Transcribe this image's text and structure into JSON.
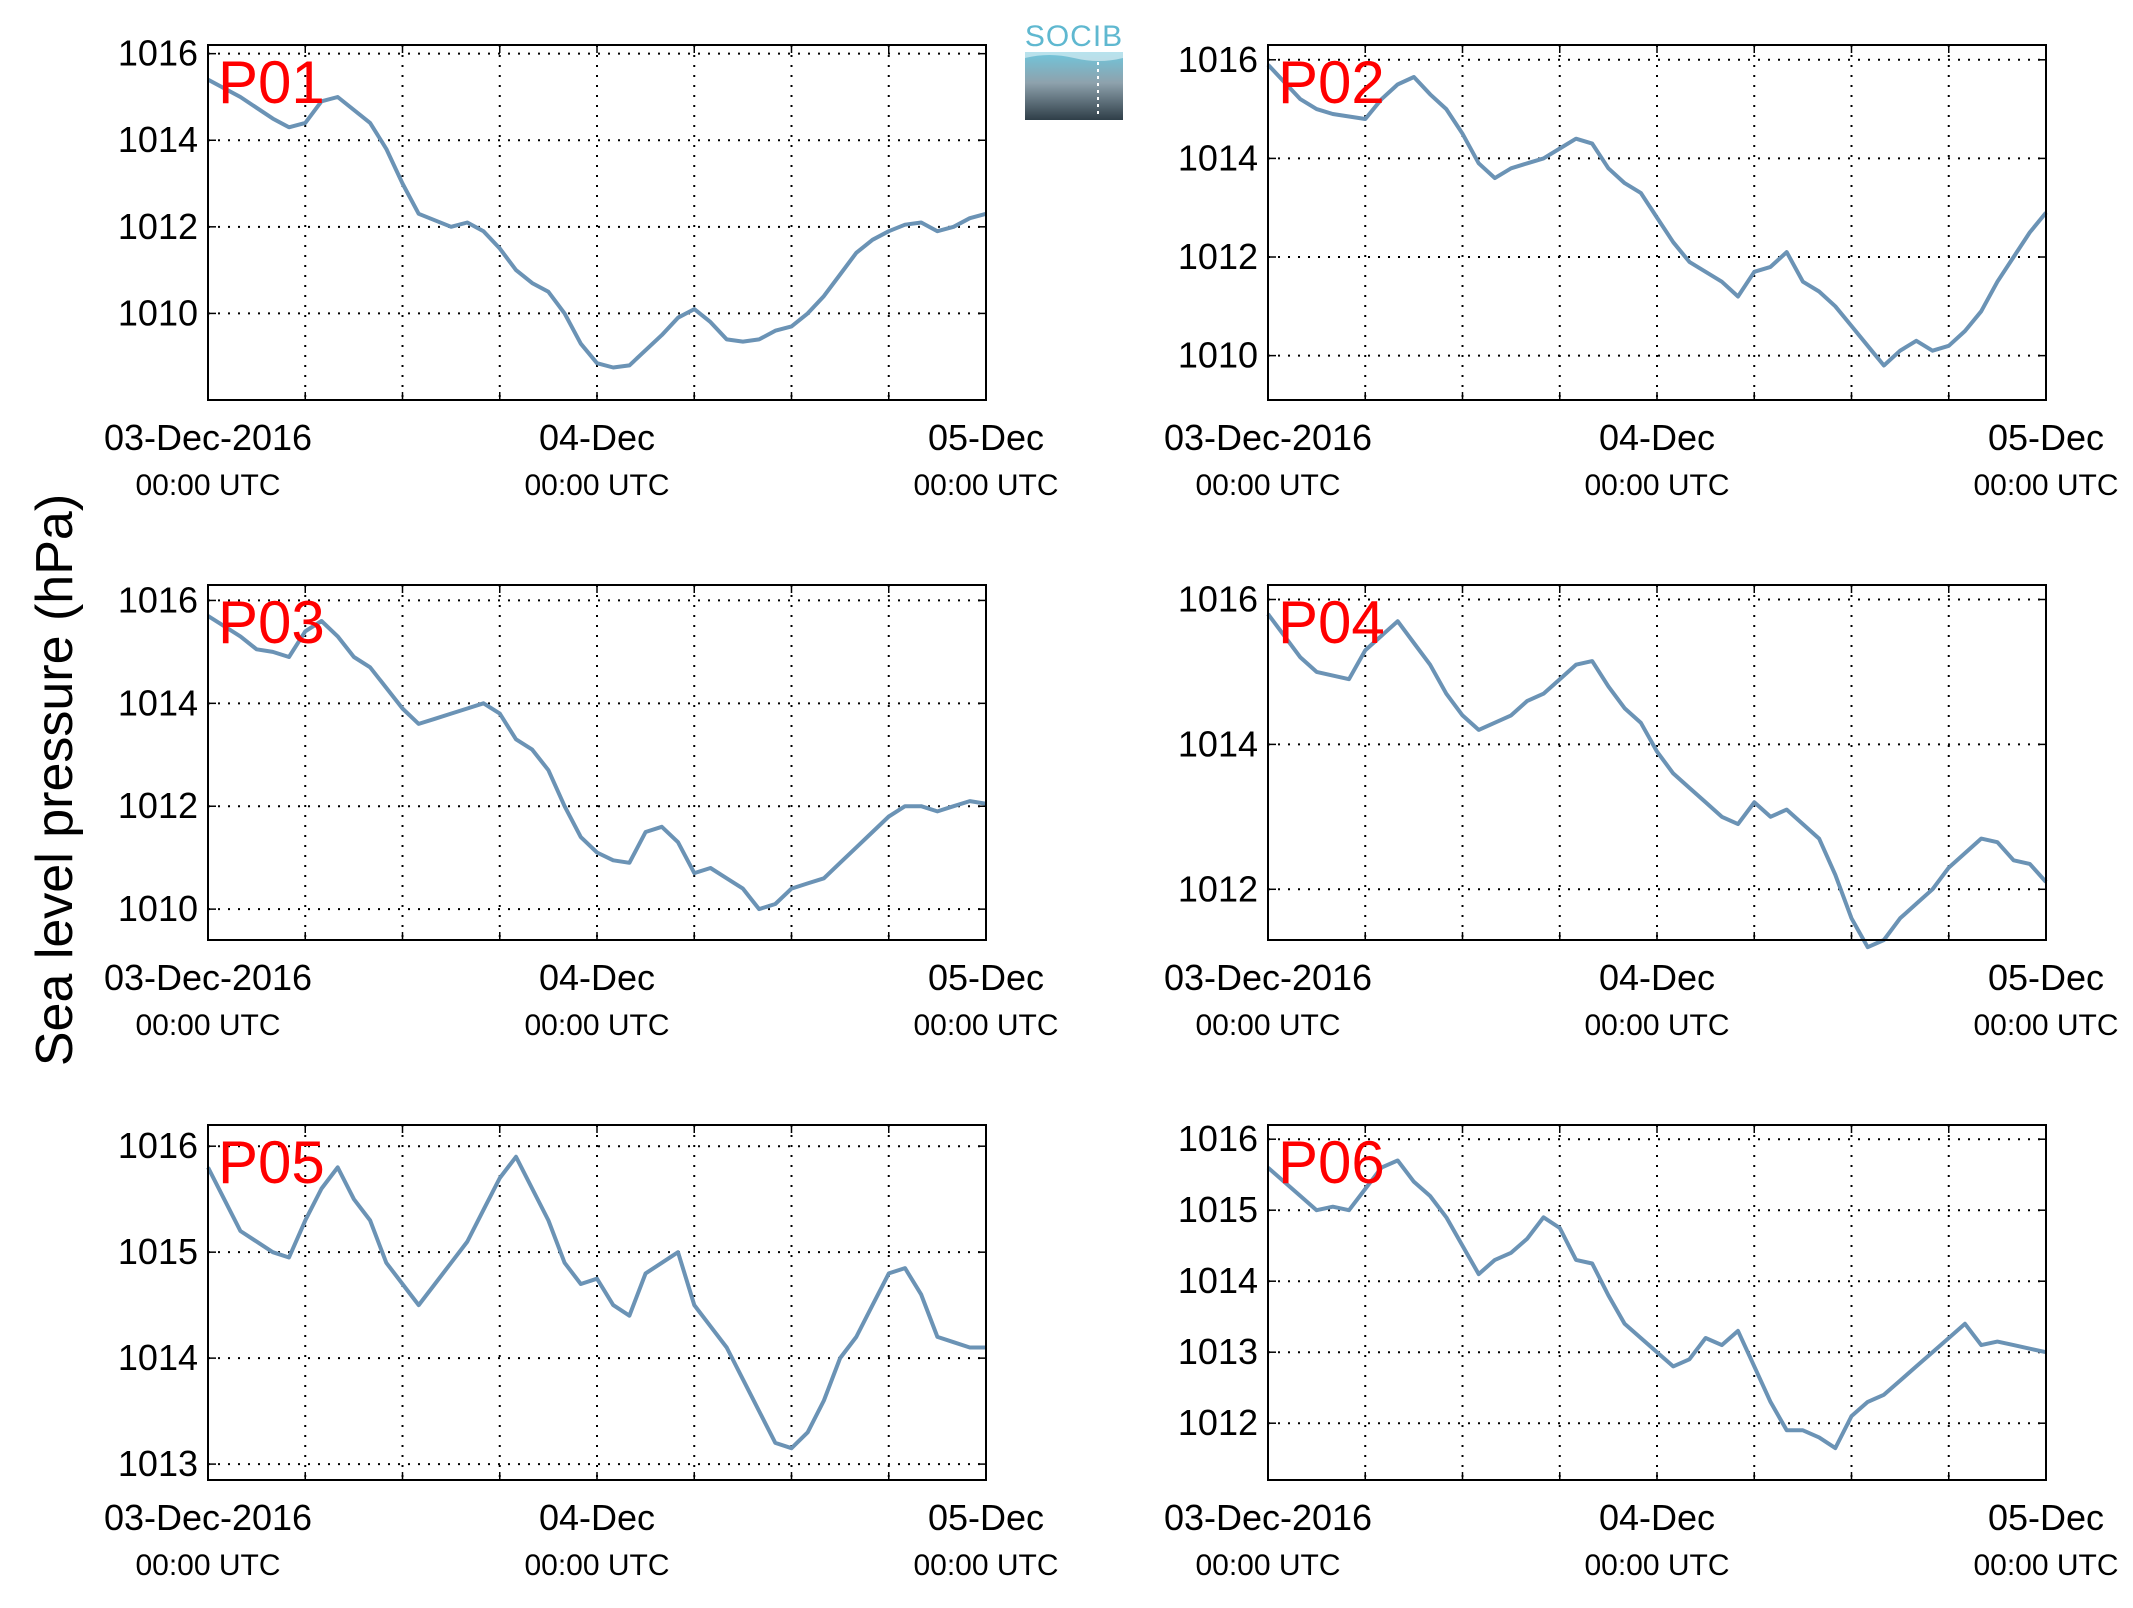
{
  "figure": {
    "ylabel": "Sea level pressure (hPa)",
    "logo_text": "SOCIB",
    "x_tick_labels": [
      "03-Dec-2016",
      "04-Dec",
      "05-Dec"
    ],
    "x_tick_sublabels": [
      "00:00 UTC",
      "00:00 UTC",
      "00:00 UTC"
    ],
    "line_color": "#6b93b5",
    "label_color": "#ff0000"
  },
  "chart_data": [
    {
      "type": "line",
      "name": "P01",
      "xlim": [
        0,
        48
      ],
      "ylim": [
        1008,
        1016.2
      ],
      "yticks": [
        1010,
        1012,
        1014,
        1016
      ],
      "grid": true,
      "x": [
        0,
        2,
        4,
        5,
        6,
        7,
        8,
        10,
        11,
        12,
        13,
        15,
        16,
        17,
        18,
        19,
        20,
        21,
        22,
        23,
        24,
        25,
        26,
        28,
        29,
        30,
        31,
        32,
        33,
        34,
        35,
        36,
        37,
        38,
        39,
        40,
        41,
        42,
        43,
        44,
        45,
        46,
        47,
        48
      ],
      "y": [
        1015.4,
        1015.0,
        1014.5,
        1014.3,
        1014.4,
        1014.9,
        1015.0,
        1014.4,
        1013.8,
        1013.0,
        1012.3,
        1012.0,
        1012.1,
        1011.9,
        1011.5,
        1011.0,
        1010.7,
        1010.5,
        1010.0,
        1009.3,
        1008.85,
        1008.75,
        1008.8,
        1009.5,
        1009.9,
        1010.1,
        1009.8,
        1009.4,
        1009.35,
        1009.4,
        1009.6,
        1009.7,
        1010.0,
        1010.4,
        1010.9,
        1011.4,
        1011.7,
        1011.9,
        1012.05,
        1012.1,
        1011.9,
        1012.0,
        1012.2,
        1012.3
      ]
    },
    {
      "type": "line",
      "name": "P02",
      "xlim": [
        0,
        48
      ],
      "ylim": [
        1009.1,
        1016.3
      ],
      "yticks": [
        1010,
        1012,
        1014,
        1016
      ],
      "grid": true,
      "x": [
        0,
        2,
        3,
        4,
        5,
        6,
        7,
        8,
        9,
        10,
        11,
        12,
        13,
        14,
        15,
        16,
        17,
        18,
        19,
        20,
        21,
        22,
        23,
        24,
        25,
        26,
        27,
        28,
        29,
        30,
        31,
        32,
        33,
        34,
        35,
        36,
        37,
        38,
        39,
        40,
        41,
        42,
        43,
        44,
        45,
        46,
        47,
        48
      ],
      "y": [
        1015.9,
        1015.2,
        1015.0,
        1014.9,
        1014.85,
        1014.8,
        1015.2,
        1015.5,
        1015.65,
        1015.3,
        1015.0,
        1014.5,
        1013.9,
        1013.6,
        1013.8,
        1013.9,
        1014.0,
        1014.2,
        1014.4,
        1014.3,
        1013.8,
        1013.5,
        1013.3,
        1012.8,
        1012.3,
        1011.9,
        1011.7,
        1011.5,
        1011.2,
        1011.7,
        1011.8,
        1012.1,
        1011.5,
        1011.3,
        1011.0,
        1010.6,
        1010.2,
        1009.8,
        1010.1,
        1010.3,
        1010.1,
        1010.2,
        1010.5,
        1010.9,
        1011.5,
        1012.0,
        1012.5,
        1012.9
      ]
    },
    {
      "type": "line",
      "name": "P03",
      "xlim": [
        0,
        48
      ],
      "ylim": [
        1009.4,
        1016.3
      ],
      "yticks": [
        1010,
        1012,
        1014,
        1016
      ],
      "grid": true,
      "x": [
        0,
        2,
        3,
        4,
        5,
        6,
        7,
        8,
        9,
        10,
        11,
        12,
        13,
        14,
        15,
        16,
        17,
        18,
        19,
        20,
        21,
        22,
        23,
        24,
        25,
        26,
        27,
        28,
        29,
        30,
        31,
        32,
        33,
        34,
        35,
        36,
        37,
        38,
        39,
        40,
        41,
        42,
        43,
        44,
        45,
        46,
        47,
        48
      ],
      "y": [
        1015.7,
        1015.3,
        1015.05,
        1015.0,
        1014.9,
        1015.4,
        1015.6,
        1015.3,
        1014.9,
        1014.7,
        1014.3,
        1013.9,
        1013.6,
        1013.7,
        1013.8,
        1013.9,
        1014.0,
        1013.8,
        1013.3,
        1013.1,
        1012.7,
        1012.0,
        1011.4,
        1011.1,
        1010.95,
        1010.9,
        1011.5,
        1011.6,
        1011.3,
        1010.7,
        1010.8,
        1010.6,
        1010.4,
        1010.0,
        1010.1,
        1010.4,
        1010.5,
        1010.6,
        1010.9,
        1011.2,
        1011.5,
        1011.8,
        1012.0,
        1012.0,
        1011.9,
        1012.0,
        1012.1,
        1012.05
      ]
    },
    {
      "type": "line",
      "name": "P04",
      "xlim": [
        0,
        48
      ],
      "ylim": [
        1011.3,
        1016.2
      ],
      "yticks": [
        1012,
        1014,
        1016
      ],
      "grid": true,
      "x": [
        0,
        2,
        3,
        4,
        5,
        6,
        7,
        8,
        9,
        10,
        11,
        12,
        13,
        14,
        15,
        16,
        17,
        18,
        19,
        20,
        21,
        22,
        23,
        24,
        25,
        26,
        27,
        28,
        29,
        30,
        31,
        32,
        33,
        34,
        35,
        36,
        37,
        38,
        39,
        40,
        41,
        42,
        43,
        44,
        45,
        46,
        47,
        48
      ],
      "y": [
        1015.8,
        1015.2,
        1015.0,
        1014.95,
        1014.9,
        1015.3,
        1015.5,
        1015.7,
        1015.4,
        1015.1,
        1014.7,
        1014.4,
        1014.2,
        1014.3,
        1014.4,
        1014.6,
        1014.7,
        1014.9,
        1015.1,
        1015.15,
        1014.8,
        1014.5,
        1014.3,
        1013.9,
        1013.6,
        1013.4,
        1013.2,
        1013.0,
        1012.9,
        1013.2,
        1013.0,
        1013.1,
        1012.9,
        1012.7,
        1012.2,
        1011.6,
        1011.2,
        1011.3,
        1011.6,
        1011.8,
        1012.0,
        1012.3,
        1012.5,
        1012.7,
        1012.65,
        1012.4,
        1012.35,
        1012.1
      ]
    },
    {
      "type": "line",
      "name": "P05",
      "xlim": [
        0,
        48
      ],
      "ylim": [
        1012.85,
        1016.2
      ],
      "yticks": [
        1013,
        1014,
        1015,
        1016
      ],
      "grid": true,
      "x": [
        0,
        1,
        2,
        3,
        4,
        5,
        6,
        7,
        8,
        9,
        10,
        11,
        12,
        13,
        14,
        15,
        16,
        17,
        18,
        19,
        20,
        21,
        22,
        23,
        24,
        25,
        26,
        27,
        28,
        29,
        30,
        31,
        32,
        33,
        34,
        35,
        36,
        37,
        38,
        39,
        40,
        41,
        42,
        43,
        44,
        45,
        46,
        47,
        48
      ],
      "y": [
        1015.8,
        1015.5,
        1015.2,
        1015.1,
        1015.0,
        1014.95,
        1015.3,
        1015.6,
        1015.8,
        1015.5,
        1015.3,
        1014.9,
        1014.7,
        1014.5,
        1014.7,
        1014.9,
        1015.1,
        1015.4,
        1015.7,
        1015.9,
        1015.6,
        1015.3,
        1014.9,
        1014.7,
        1014.75,
        1014.5,
        1014.4,
        1014.8,
        1014.9,
        1015.0,
        1014.5,
        1014.3,
        1014.1,
        1013.8,
        1013.5,
        1013.2,
        1013.15,
        1013.3,
        1013.6,
        1014.0,
        1014.2,
        1014.5,
        1014.8,
        1014.85,
        1014.6,
        1014.2,
        1014.15,
        1014.1,
        1014.1
      ]
    },
    {
      "type": "line",
      "name": "P06",
      "xlim": [
        0,
        48
      ],
      "ylim": [
        1011.2,
        1016.2
      ],
      "yticks": [
        1012,
        1013,
        1014,
        1015,
        1016
      ],
      "grid": true,
      "x": [
        0,
        2,
        3,
        4,
        5,
        6,
        7,
        8,
        9,
        10,
        11,
        12,
        13,
        14,
        15,
        16,
        17,
        18,
        19,
        20,
        21,
        22,
        23,
        24,
        25,
        26,
        27,
        28,
        29,
        30,
        31,
        32,
        33,
        34,
        35,
        36,
        37,
        38,
        39,
        40,
        41,
        42,
        43,
        44,
        45,
        46,
        47,
        48
      ],
      "y": [
        1015.6,
        1015.2,
        1015.0,
        1015.05,
        1015.0,
        1015.3,
        1015.6,
        1015.7,
        1015.4,
        1015.2,
        1014.9,
        1014.5,
        1014.1,
        1014.3,
        1014.4,
        1014.6,
        1014.9,
        1014.75,
        1014.3,
        1014.25,
        1013.8,
        1013.4,
        1013.2,
        1013.0,
        1012.8,
        1012.9,
        1013.2,
        1013.1,
        1013.3,
        1012.8,
        1012.3,
        1011.9,
        1011.9,
        1011.8,
        1011.65,
        1012.1,
        1012.3,
        1012.4,
        1012.6,
        1012.8,
        1013.0,
        1013.2,
        1013.4,
        1013.1,
        1013.15,
        1013.1,
        1013.05,
        1013.0
      ]
    }
  ]
}
